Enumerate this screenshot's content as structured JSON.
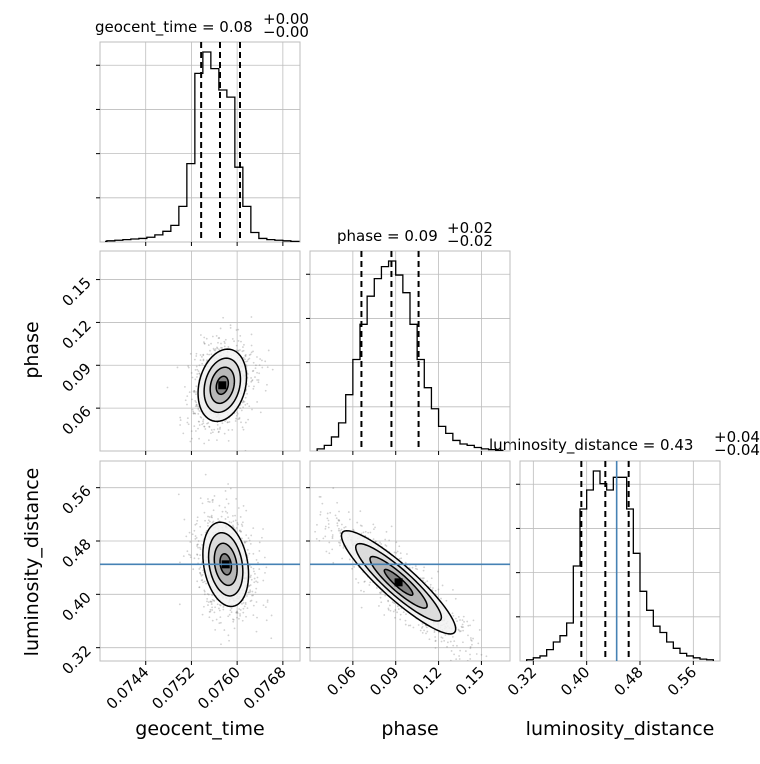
{
  "chart_data": {
    "type": "corner",
    "parameters": [
      {
        "key": "geocent_time",
        "label": "geocent_time",
        "median": "0.08",
        "plus": "+0.00",
        "minus": "−0.00",
        "range": [
          0.0736,
          0.0771
        ],
        "ticks": [
          0.0744,
          0.0752,
          0.076,
          0.0768
        ],
        "tick_labels": [
          "0.0744",
          "0.0752",
          "0.0760",
          "0.0768"
        ],
        "quantiles": [
          0.07537,
          0.0757,
          0.07605
        ]
      },
      {
        "key": "phase",
        "label": "phase",
        "median": "0.09",
        "plus": "+0.02",
        "minus": "−0.02",
        "range": [
          0.03,
          0.17
        ],
        "ticks": [
          0.06,
          0.09,
          0.12,
          0.15
        ],
        "tick_labels": [
          "0.06",
          "0.09",
          "0.12",
          "0.15"
        ],
        "quantiles": [
          0.066,
          0.087,
          0.106
        ]
      },
      {
        "key": "luminosity_distance",
        "label": "luminosity_distance",
        "median": "0.43",
        "plus": "+0.04",
        "minus": "−0.04",
        "range": [
          0.3,
          0.6
        ],
        "ticks": [
          0.32,
          0.4,
          0.48,
          0.56
        ],
        "tick_labels": [
          "0.32",
          "0.40",
          "0.48",
          "0.56"
        ],
        "quantiles": [
          0.392,
          0.428,
          0.463
        ],
        "truth": 0.445
      }
    ],
    "histograms": {
      "geocent_time": {
        "edges": [
          0.0737,
          0.07372,
          0.07386,
          0.074,
          0.07414,
          0.07428,
          0.07442,
          0.07456,
          0.0747,
          0.07484,
          0.07498,
          0.07512,
          0.07526,
          0.0754,
          0.07554,
          0.07568,
          0.07582,
          0.07596,
          0.0761,
          0.07624,
          0.07638,
          0.07652,
          0.07666,
          0.0768,
          0.07694,
          0.07708
        ],
        "counts": [
          0.5,
          1,
          1.5,
          2,
          2.5,
          3,
          4,
          6,
          9,
          14,
          30,
          66,
          142,
          160,
          146,
          128,
          122,
          63,
          30,
          8,
          3,
          2,
          1.5,
          1,
          0.5
        ]
      },
      "phase": {
        "edges": [
          0.035,
          0.04,
          0.045,
          0.05,
          0.055,
          0.06,
          0.065,
          0.07,
          0.075,
          0.08,
          0.085,
          0.09,
          0.095,
          0.1,
          0.105,
          0.11,
          0.115,
          0.12,
          0.125,
          0.13,
          0.135,
          0.14,
          0.145,
          0.15,
          0.155,
          0.16,
          0.165
        ],
        "counts": [
          3,
          8,
          20,
          40,
          80,
          130,
          180,
          220,
          245,
          262,
          270,
          250,
          225,
          180,
          130,
          90,
          60,
          35,
          25,
          15,
          10,
          8,
          5,
          3,
          2,
          1
        ]
      },
      "luminosity_distance": {
        "edges": [
          0.31,
          0.32,
          0.33,
          0.34,
          0.35,
          0.36,
          0.37,
          0.38,
          0.39,
          0.4,
          0.41,
          0.42,
          0.43,
          0.44,
          0.45,
          0.46,
          0.47,
          0.48,
          0.49,
          0.5,
          0.51,
          0.52,
          0.53,
          0.54,
          0.55,
          0.56,
          0.57,
          0.58,
          0.59
        ],
        "counts": [
          2,
          5,
          8,
          18,
          30,
          40,
          60,
          150,
          240,
          270,
          300,
          280,
          270,
          290,
          290,
          240,
          170,
          110,
          80,
          55,
          45,
          30,
          20,
          12,
          8,
          5,
          3,
          2
        ]
      }
    },
    "pairs": [
      {
        "x": "geocent_time",
        "y": "phase",
        "peak": [
          0.07574,
          0.076
        ],
        "cov": [
          [
            4.5e-08,
            6e-07
          ],
          [
            6e-07,
            0.00016
          ]
        ]
      },
      {
        "x": "geocent_time",
        "y": "luminosity_distance",
        "peak": [
          0.0758,
          0.445
        ],
        "cov": [
          [
            4e-08,
            -1.5e-06
          ],
          [
            -1.5e-06,
            0.001
          ]
        ]
      },
      {
        "x": "phase",
        "y": "luminosity_distance",
        "peak": [
          0.092,
          0.418
        ],
        "cov": [
          [
            0.0004,
            -0.0007
          ],
          [
            -0.0007,
            0.0015
          ]
        ]
      }
    ],
    "grid": true
  }
}
